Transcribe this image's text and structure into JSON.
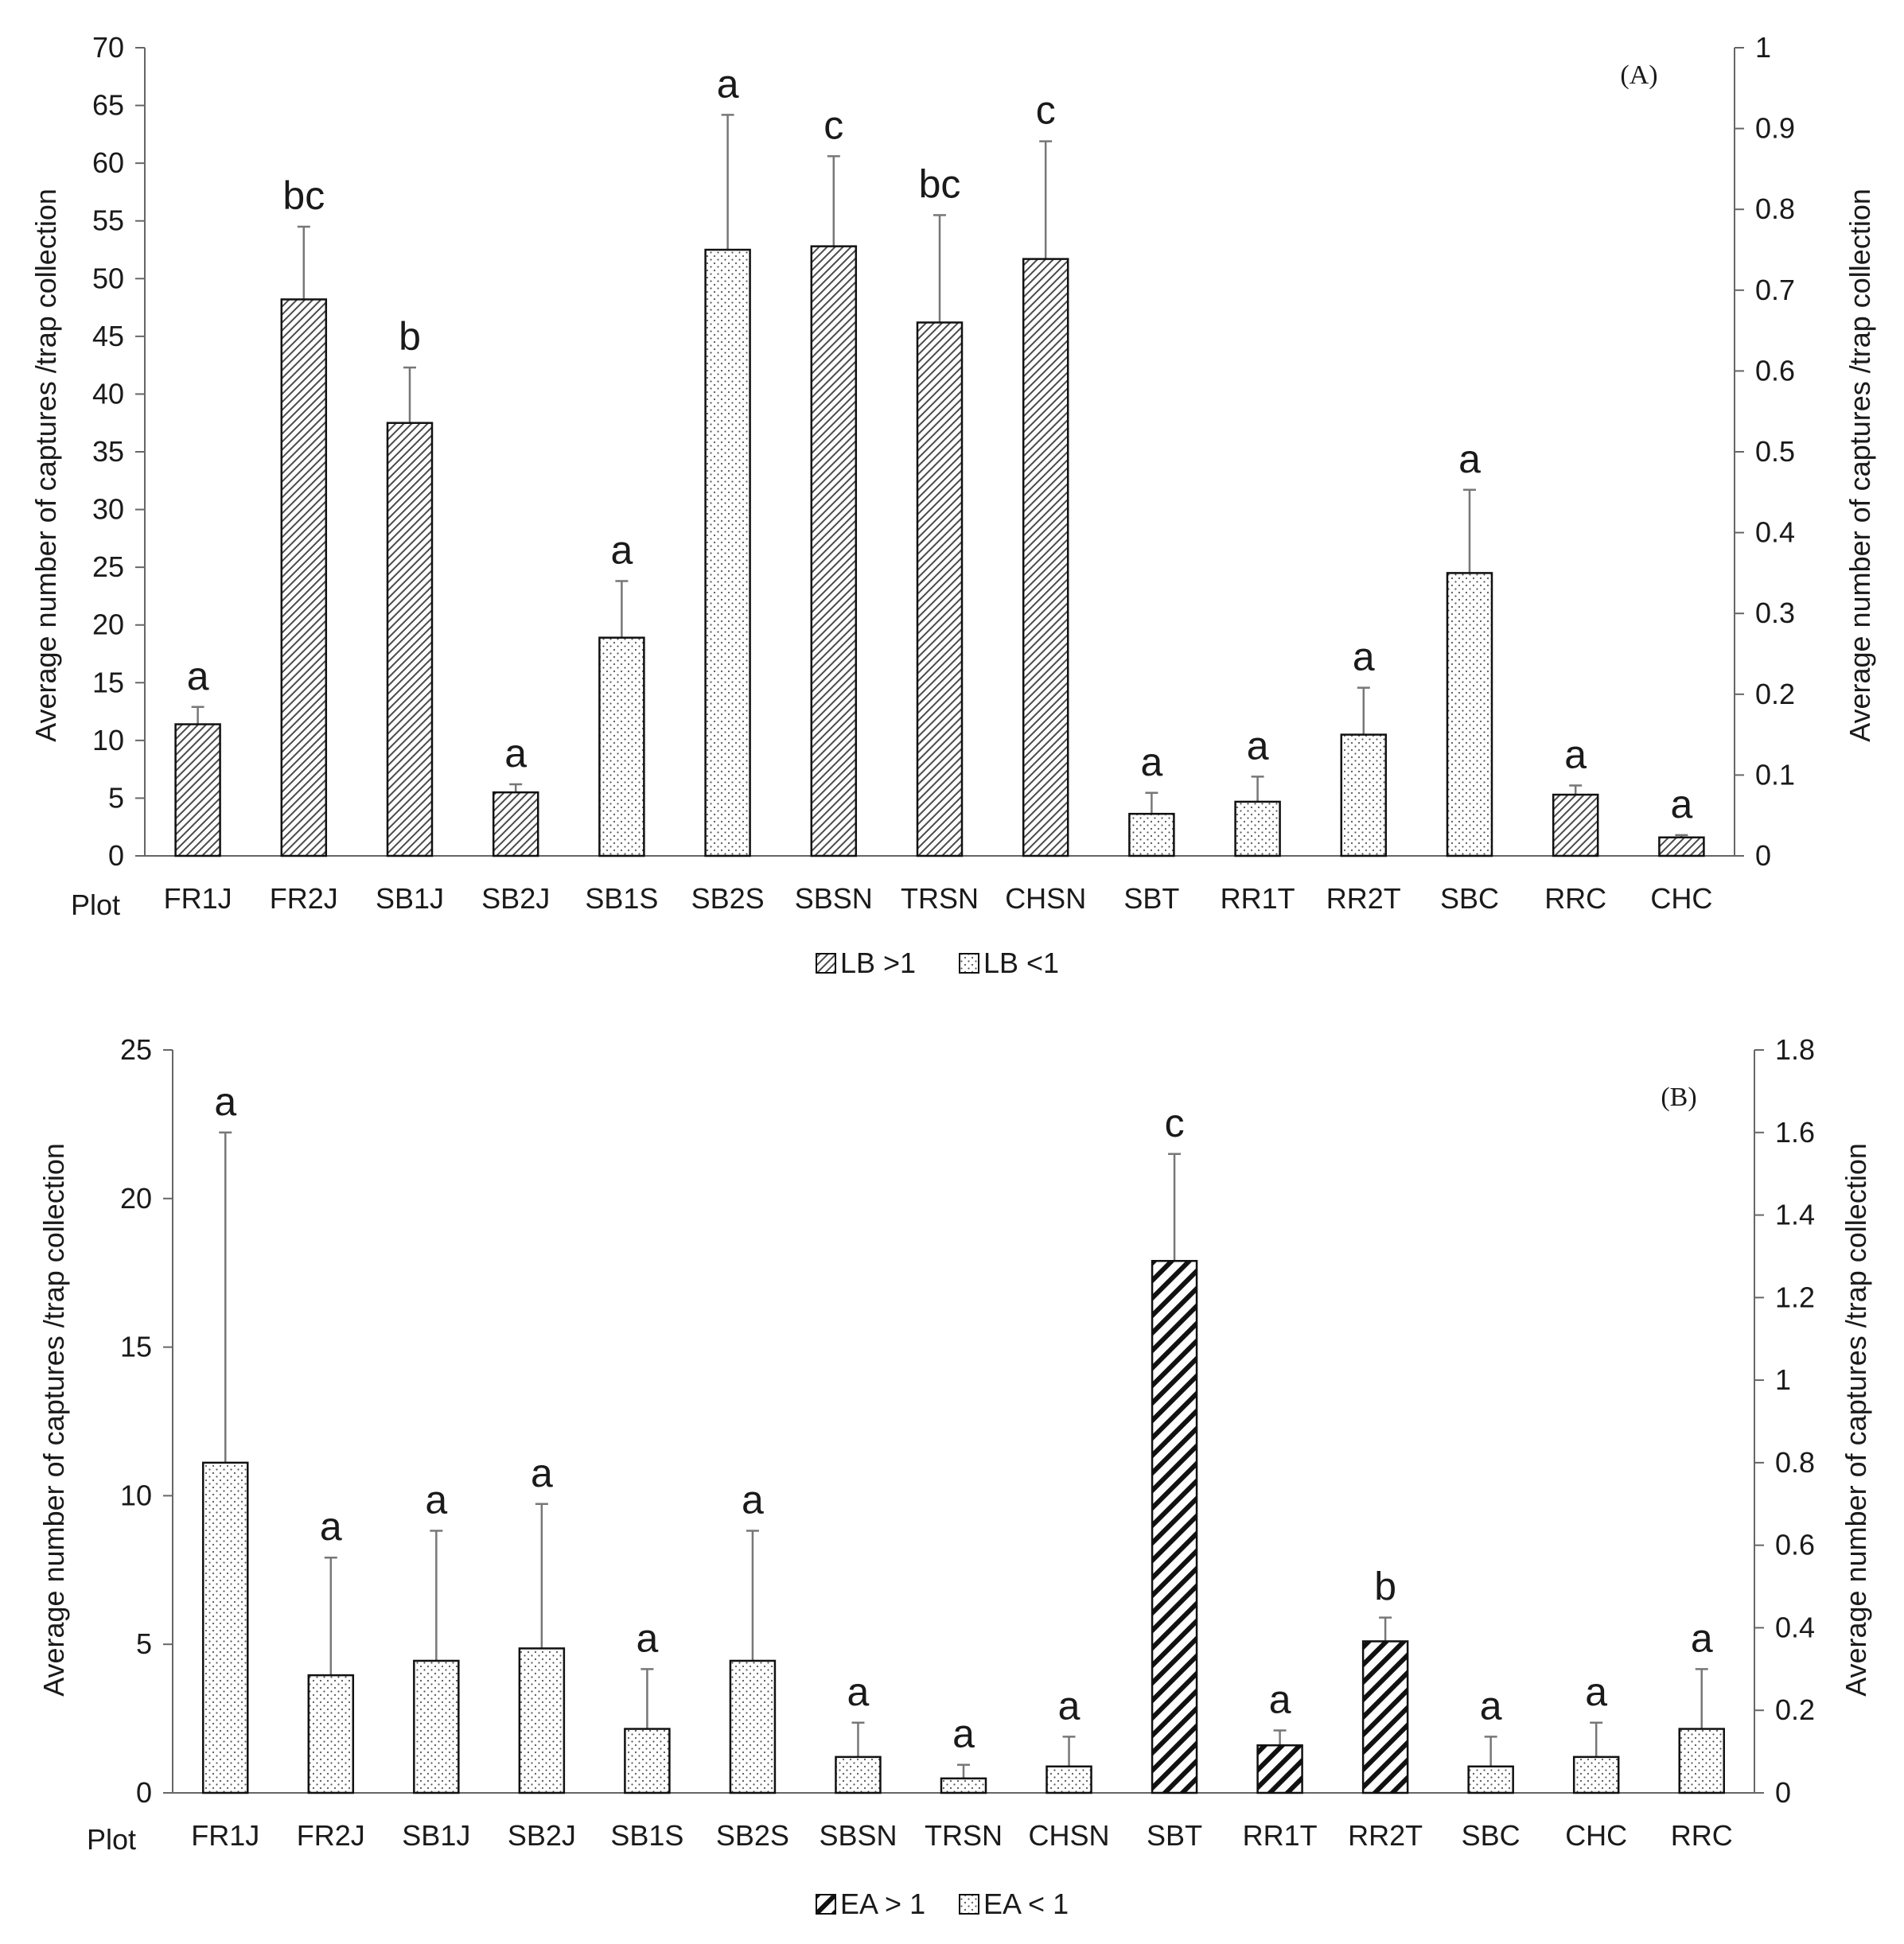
{
  "chart_data": [
    {
      "type": "bar",
      "panel_label": "(A)",
      "x_axis_title": "Plot",
      "categories": [
        "FR1J",
        "FR2J",
        "SB1J",
        "SB2J",
        "SB1S",
        "SB2S",
        "SBSN",
        "TRSN",
        "CHSN",
        "SBT",
        "RR1T",
        "RR2T",
        "SBC",
        "RRC",
        "CHC"
      ],
      "axis": "left",
      "bar_series": [
        {
          "name": "FR1J",
          "left_value": 11.4,
          "error": 1.5,
          "letter": "a",
          "legend": "LB >1"
        },
        {
          "name": "FR2J",
          "left_value": 48.2,
          "error": 6.3,
          "letter": "bc",
          "legend": "LB >1"
        },
        {
          "name": "SB1J",
          "left_value": 37.5,
          "error": 4.8,
          "letter": "b",
          "legend": "LB >1"
        },
        {
          "name": "SB2J",
          "left_value": 5.5,
          "error": 0.7,
          "letter": "a",
          "legend": "LB >1"
        },
        {
          "name": "SB1S",
          "right_value": 0.27,
          "error": 0.07,
          "letter": "a",
          "legend": "LB <1"
        },
        {
          "name": "SB2S",
          "right_value": 0.75,
          "error": 0.167,
          "letter": "a",
          "legend": "LB <1"
        },
        {
          "name": "SBSN",
          "left_value": 52.8,
          "error": 7.8,
          "letter": "c",
          "legend": "LB >1"
        },
        {
          "name": "TRSN",
          "left_value": 46.2,
          "error": 9.3,
          "letter": "bc",
          "legend": "LB >1"
        },
        {
          "name": "CHSN",
          "left_value": 51.7,
          "error": 10.2,
          "letter": "c",
          "legend": "LB >1"
        },
        {
          "name": "SBT",
          "right_value": 0.052,
          "error": 0.026,
          "letter": "a",
          "legend": "LB <1"
        },
        {
          "name": "RR1T",
          "right_value": 0.067,
          "error": 0.031,
          "letter": "a",
          "legend": "LB <1"
        },
        {
          "name": "RR2T",
          "right_value": 0.15,
          "error": 0.058,
          "letter": "a",
          "legend": "LB <1"
        },
        {
          "name": "SBC",
          "right_value": 0.35,
          "error": 0.103,
          "letter": "a",
          "legend": "LB <1"
        },
        {
          "name": "RRC",
          "left_value": 5.3,
          "error": 0.8,
          "letter": "a",
          "legend": "LB >1"
        },
        {
          "name": "CHC",
          "left_value": 1.6,
          "error": 0.2,
          "letter": "a",
          "legend": "LB >1"
        }
      ],
      "y_left": {
        "label": "Average number of captures /trap collection",
        "min": 0,
        "max": 70,
        "step": 5,
        "ticks": [
          "0",
          "5",
          "10",
          "15",
          "20",
          "25",
          "30",
          "35",
          "40",
          "45",
          "50",
          "55",
          "60",
          "65",
          "70"
        ]
      },
      "y_right": {
        "label": "Average number of captures /trap collection",
        "min": 0,
        "max": 1,
        "step": 0.1,
        "ticks": [
          "0",
          "0.1",
          "0.2",
          "0.3",
          "0.4",
          "0.5",
          "0.6",
          "0.7",
          "0.8",
          "0.9",
          "1"
        ]
      },
      "legend": [
        {
          "label": "LB >1",
          "pattern": "diag-fine"
        },
        {
          "label": "LB <1",
          "pattern": "dots"
        }
      ],
      "pattern_ids": {
        "diag-fine": "patLBgt",
        "dots": "patDots"
      },
      "grid": false
    },
    {
      "type": "bar",
      "panel_label": "(B)",
      "x_axis_title": "Plot",
      "categories": [
        "FR1J",
        "FR2J",
        "SB1J",
        "SB2J",
        "SB1S",
        "SB2S",
        "SBSN",
        "TRSN",
        "CHSN",
        "SBT",
        "RR1T",
        "RR2T",
        "SBC",
        "CHC",
        "RRC"
      ],
      "bar_series": [
        {
          "name": "FR1J",
          "right_value": 0.8,
          "error": 0.8,
          "letter": "a",
          "legend": "EA < 1"
        },
        {
          "name": "FR2J",
          "right_value": 0.285,
          "error": 0.285,
          "letter": "a",
          "legend": "EA < 1"
        },
        {
          "name": "SB1J",
          "right_value": 0.32,
          "error": 0.315,
          "letter": "a",
          "legend": "EA < 1"
        },
        {
          "name": "SB2J",
          "right_value": 0.35,
          "error": 0.35,
          "letter": "a",
          "legend": "EA < 1"
        },
        {
          "name": "SB1S",
          "right_value": 0.155,
          "error": 0.145,
          "letter": "a",
          "legend": "EA < 1"
        },
        {
          "name": "SB2S",
          "right_value": 0.32,
          "error": 0.315,
          "letter": "a",
          "legend": "EA < 1"
        },
        {
          "name": "SBSN",
          "right_value": 0.087,
          "error": 0.083,
          "letter": "a",
          "legend": "EA < 1"
        },
        {
          "name": "TRSN",
          "right_value": 0.035,
          "error": 0.033,
          "letter": "a",
          "legend": "EA < 1"
        },
        {
          "name": "CHSN",
          "right_value": 0.064,
          "error": 0.072,
          "letter": "a",
          "legend": "EA < 1"
        },
        {
          "name": "SBT",
          "left_value": 17.9,
          "error": 3.6,
          "letter": "c",
          "legend": "EA > 1"
        },
        {
          "name": "RR1T",
          "left_value": 1.6,
          "error": 0.5,
          "letter": "a",
          "legend": "EA > 1"
        },
        {
          "name": "RR2T",
          "left_value": 5.1,
          "error": 0.8,
          "letter": "b",
          "legend": "EA > 1"
        },
        {
          "name": "SBC",
          "right_value": 0.064,
          "error": 0.072,
          "letter": "a",
          "legend": "EA < 1"
        },
        {
          "name": "CHC",
          "right_value": 0.087,
          "error": 0.083,
          "letter": "a",
          "legend": "EA < 1"
        },
        {
          "name": "RRC",
          "right_value": 0.155,
          "error": 0.145,
          "letter": "a",
          "legend": "EA < 1"
        }
      ],
      "y_left": {
        "label": "Average number of captures /trap collection",
        "min": 0,
        "max": 25,
        "step": 5,
        "ticks": [
          "0",
          "5",
          "10",
          "15",
          "20",
          "25"
        ]
      },
      "y_right": {
        "label": "Average number of captures /trap collection",
        "min": 0,
        "max": 1.8,
        "step": 0.2,
        "ticks": [
          "0",
          "0.2",
          "0.4",
          "0.6",
          "0.8",
          "1",
          "1.2",
          "1.4",
          "1.6",
          "1.8"
        ]
      },
      "legend": [
        {
          "label": "EA > 1",
          "pattern": "diag-bold"
        },
        {
          "label": "EA < 1",
          "pattern": "dots"
        }
      ],
      "pattern_ids": {
        "diag-bold": "patEAgt",
        "dots": "patDots"
      },
      "grid": false
    }
  ]
}
